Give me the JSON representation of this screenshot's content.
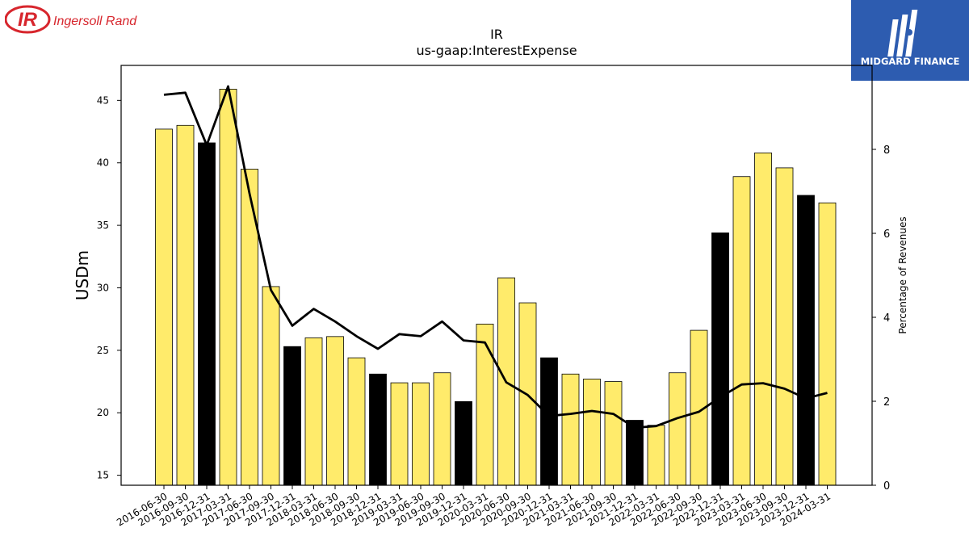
{
  "logos": {
    "left_text": "Ingersoll Rand",
    "left_mark": "IR",
    "right_text": "MIDGARD FINANCE",
    "brand_red": "#d7262d",
    "brand_blue": "#2d5cb0"
  },
  "chart_data": {
    "type": "bar",
    "title": "IR",
    "subtitle": "us-gaap:InterestExpense",
    "ylabel": "USDm",
    "y2label": "Percentage of Revenues",
    "ylim": [
      14.2,
      47.8
    ],
    "y2lim": [
      0,
      10.0
    ],
    "yticks": [
      15,
      20,
      25,
      30,
      35,
      40,
      45
    ],
    "y2ticks": [
      0,
      2,
      4,
      6,
      8
    ],
    "categories": [
      "2016-06-30",
      "2016-09-30",
      "2016-12-31",
      "2017-03-31",
      "2017-06-30",
      "2017-09-30",
      "2017-12-31",
      "2018-03-31",
      "2018-06-30",
      "2018-09-30",
      "2018-12-31",
      "2019-03-31",
      "2019-06-30",
      "2019-09-30",
      "2019-12-31",
      "2020-03-31",
      "2020-06-30",
      "2020-09-30",
      "2020-12-31",
      "2021-03-31",
      "2021-06-30",
      "2021-09-30",
      "2021-12-31",
      "2022-03-31",
      "2022-06-30",
      "2022-09-30",
      "2022-12-31",
      "2023-03-31",
      "2023-06-30",
      "2023-09-30",
      "2023-12-31",
      "2024-03-31"
    ],
    "series": [
      {
        "type": "bar",
        "values": [
          42.7,
          43.0,
          41.6,
          45.9,
          39.5,
          30.1,
          25.3,
          26.0,
          26.1,
          24.4,
          23.1,
          22.4,
          22.4,
          23.2,
          20.9,
          27.1,
          30.8,
          28.8,
          24.4,
          23.1,
          22.7,
          22.5,
          19.4,
          19.0,
          23.2,
          26.6,
          34.4,
          38.9,
          40.8,
          39.6,
          37.4,
          36.8
        ],
        "highlight": [
          false,
          false,
          true,
          false,
          false,
          false,
          true,
          false,
          false,
          false,
          true,
          false,
          false,
          false,
          true,
          false,
          false,
          false,
          true,
          false,
          false,
          false,
          true,
          false,
          false,
          false,
          true,
          false,
          false,
          false,
          true,
          false
        ],
        "colors": {
          "normal": "#ffeb6b",
          "highlight": "#000000",
          "edge": "#000000"
        }
      },
      {
        "type": "line",
        "axis": "right",
        "values": [
          9.3,
          9.35,
          8.1,
          9.5,
          6.95,
          4.65,
          3.8,
          4.2,
          3.9,
          3.55,
          3.25,
          3.6,
          3.55,
          3.9,
          3.45,
          3.4,
          2.45,
          2.15,
          1.65,
          1.7,
          1.77,
          1.7,
          1.37,
          1.41,
          1.6,
          1.75,
          2.1,
          2.4,
          2.43,
          2.3,
          2.07,
          2.2
        ],
        "color": "#000000"
      }
    ],
    "grid": false,
    "legend": "none"
  }
}
